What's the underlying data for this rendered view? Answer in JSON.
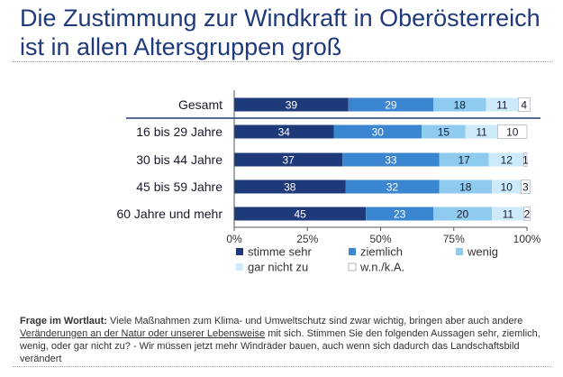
{
  "title": "Die Zustimmung zur Windkraft in Oberösterreich ist in allen Altersgruppen groß",
  "chart_data": {
    "type": "bar",
    "orientation": "horizontal",
    "stacked": true,
    "categories": [
      "Gesamt",
      "16 bis 29 Jahre",
      "30 bis 44 Jahre",
      "45 bis 59 Jahre",
      "60 Jahre und mehr"
    ],
    "series": [
      {
        "name": "stimme sehr",
        "color": "#1f3a7a",
        "values": [
          39,
          34,
          37,
          38,
          45
        ]
      },
      {
        "name": "ziemlich",
        "color": "#3a86d0",
        "values": [
          29,
          30,
          33,
          32,
          23
        ]
      },
      {
        "name": "wenig",
        "color": "#8fcbee",
        "values": [
          18,
          15,
          17,
          18,
          20
        ]
      },
      {
        "name": "gar nicht zu",
        "color": "#cdeafa",
        "values": [
          11,
          11,
          12,
          10,
          11
        ]
      },
      {
        "name": "w.n./k.A.",
        "color": "#ffffff",
        "values": [
          4,
          10,
          1,
          3,
          2
        ]
      }
    ],
    "xticks": [
      "0%",
      "25%",
      "50%",
      "75%",
      "100%"
    ],
    "xlim": [
      0,
      100
    ],
    "legend": "bottom",
    "grid": false
  },
  "question": {
    "label": "Frage im Wortlaut:",
    "text_before": " Viele Maßnahmen zum Klima- und Umweltschutz sind zwar wichtig, bringen aber auch andere ",
    "underlined": "Veränderungen an der Natur oder unserer Lebensweise",
    "text_after": " mit sich. Stimmen Sie den folgenden Aussagen sehr, ziemlich, wenig, oder gar nicht zu? - Wir müssen jetzt mehr Windräder bauen, auch wenn sich dadurch das Landschaftsbild verändert"
  }
}
